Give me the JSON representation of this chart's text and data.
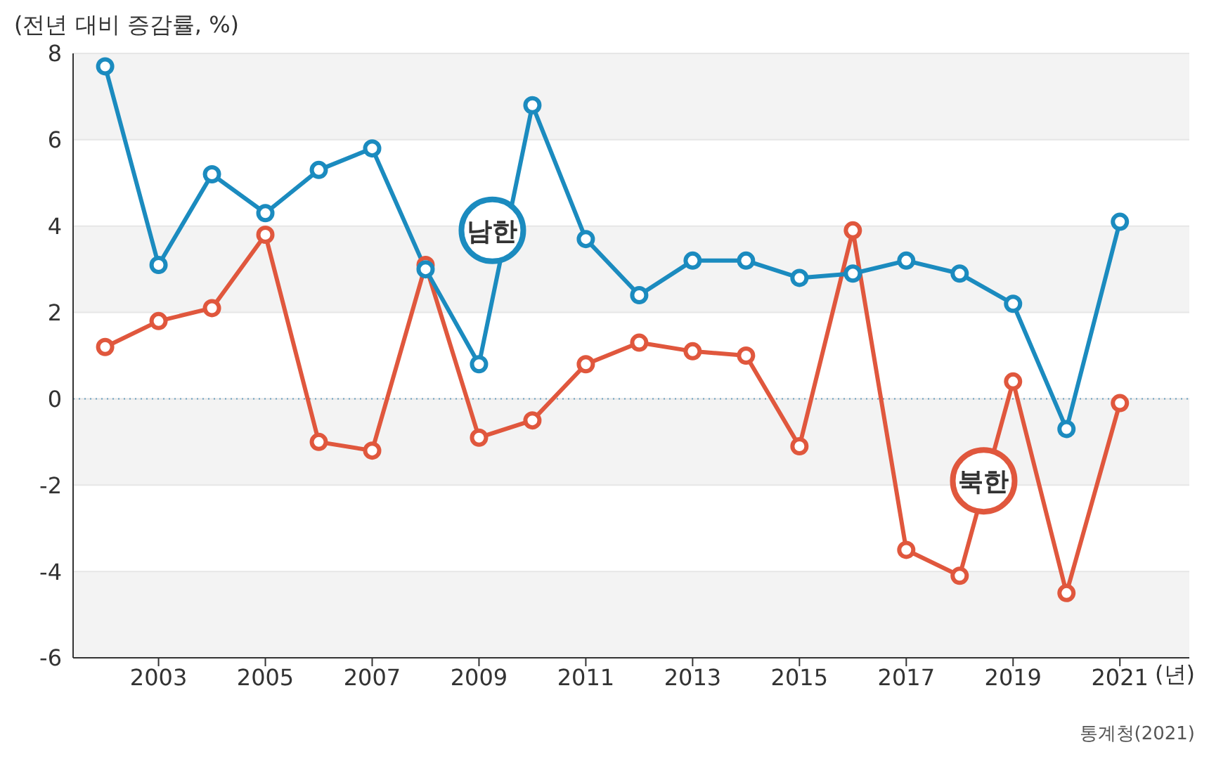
{
  "chart_data": {
    "type": "line",
    "ylabel": "(전년 대비 증감률, %)",
    "xlabel": "(년)",
    "x": [
      2002,
      2003,
      2004,
      2005,
      2006,
      2007,
      2008,
      2009,
      2010,
      2011,
      2012,
      2013,
      2014,
      2015,
      2016,
      2017,
      2018,
      2019,
      2020,
      2021
    ],
    "series": [
      {
        "name": "남한",
        "color": "#1b8bbf",
        "values": [
          7.7,
          3.1,
          5.2,
          4.3,
          5.3,
          5.8,
          3.0,
          0.8,
          6.8,
          3.7,
          2.4,
          3.2,
          3.2,
          2.8,
          2.9,
          3.2,
          2.9,
          2.2,
          -0.7,
          4.1
        ]
      },
      {
        "name": "북한",
        "color": "#e0573d",
        "values": [
          1.2,
          1.8,
          2.1,
          3.8,
          -1.0,
          -1.2,
          3.1,
          -0.9,
          -0.5,
          0.8,
          1.3,
          1.1,
          1.0,
          -1.1,
          3.9,
          -3.5,
          -4.1,
          0.4,
          -4.5,
          -0.1
        ]
      }
    ],
    "xlim": [
      2001.4,
      2022.3
    ],
    "xticks": [
      2003,
      2005,
      2007,
      2009,
      2011,
      2013,
      2015,
      2017,
      2019,
      2021
    ],
    "ylim": [
      -6,
      8
    ],
    "yticks": [
      -6,
      -4,
      -2,
      0,
      2,
      4,
      6,
      8
    ],
    "grid": "y",
    "marker": "circle",
    "line_style": "solid",
    "ref_lines": [
      {
        "axis": "y",
        "value": 0,
        "color": "#6a9fc0",
        "line_style": "dotted"
      }
    ],
    "annotations": [
      "통계청(2021)"
    ]
  }
}
